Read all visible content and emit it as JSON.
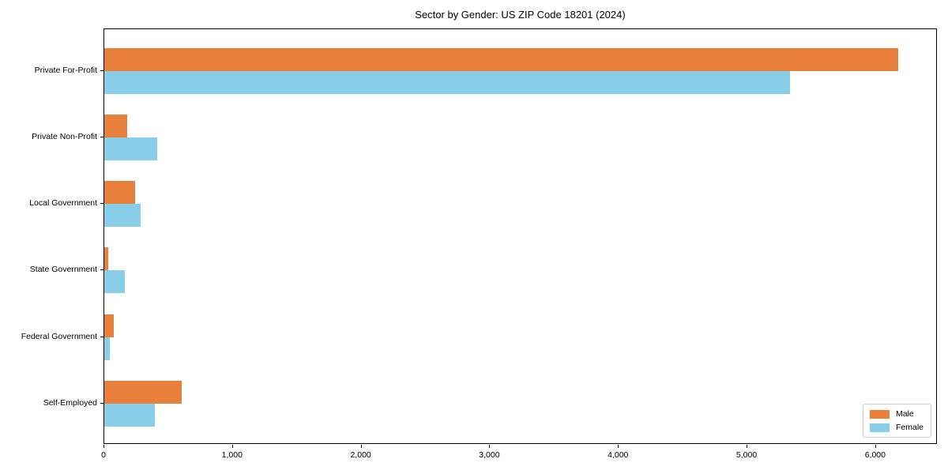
{
  "title": "Sector by Gender: US ZIP Code 18201 (2024)",
  "chart_data": {
    "type": "bar",
    "orientation": "horizontal",
    "title": "Sector by Gender: US ZIP Code 18201 (2024)",
    "xlabel": "",
    "ylabel": "",
    "categories": [
      "Private For-Profit",
      "Private Non-Profit",
      "Local Government",
      "State Government",
      "Federal Government",
      "Self-Employed"
    ],
    "series": [
      {
        "name": "Male",
        "color": "#e8803c",
        "values": [
          6170,
          180,
          240,
          30,
          75,
          600
        ]
      },
      {
        "name": "Female",
        "color": "#89cfe9",
        "values": [
          5330,
          410,
          280,
          160,
          40,
          395
        ]
      }
    ],
    "xlim": [
      0,
      6480
    ],
    "xticks": [
      0,
      1000,
      2000,
      3000,
      4000,
      5000,
      6000
    ],
    "xtick_labels": [
      "0",
      "1,000",
      "2,000",
      "3,000",
      "4,000",
      "5,000",
      "6,000"
    ],
    "grid": false,
    "legend_position": "lower right"
  }
}
